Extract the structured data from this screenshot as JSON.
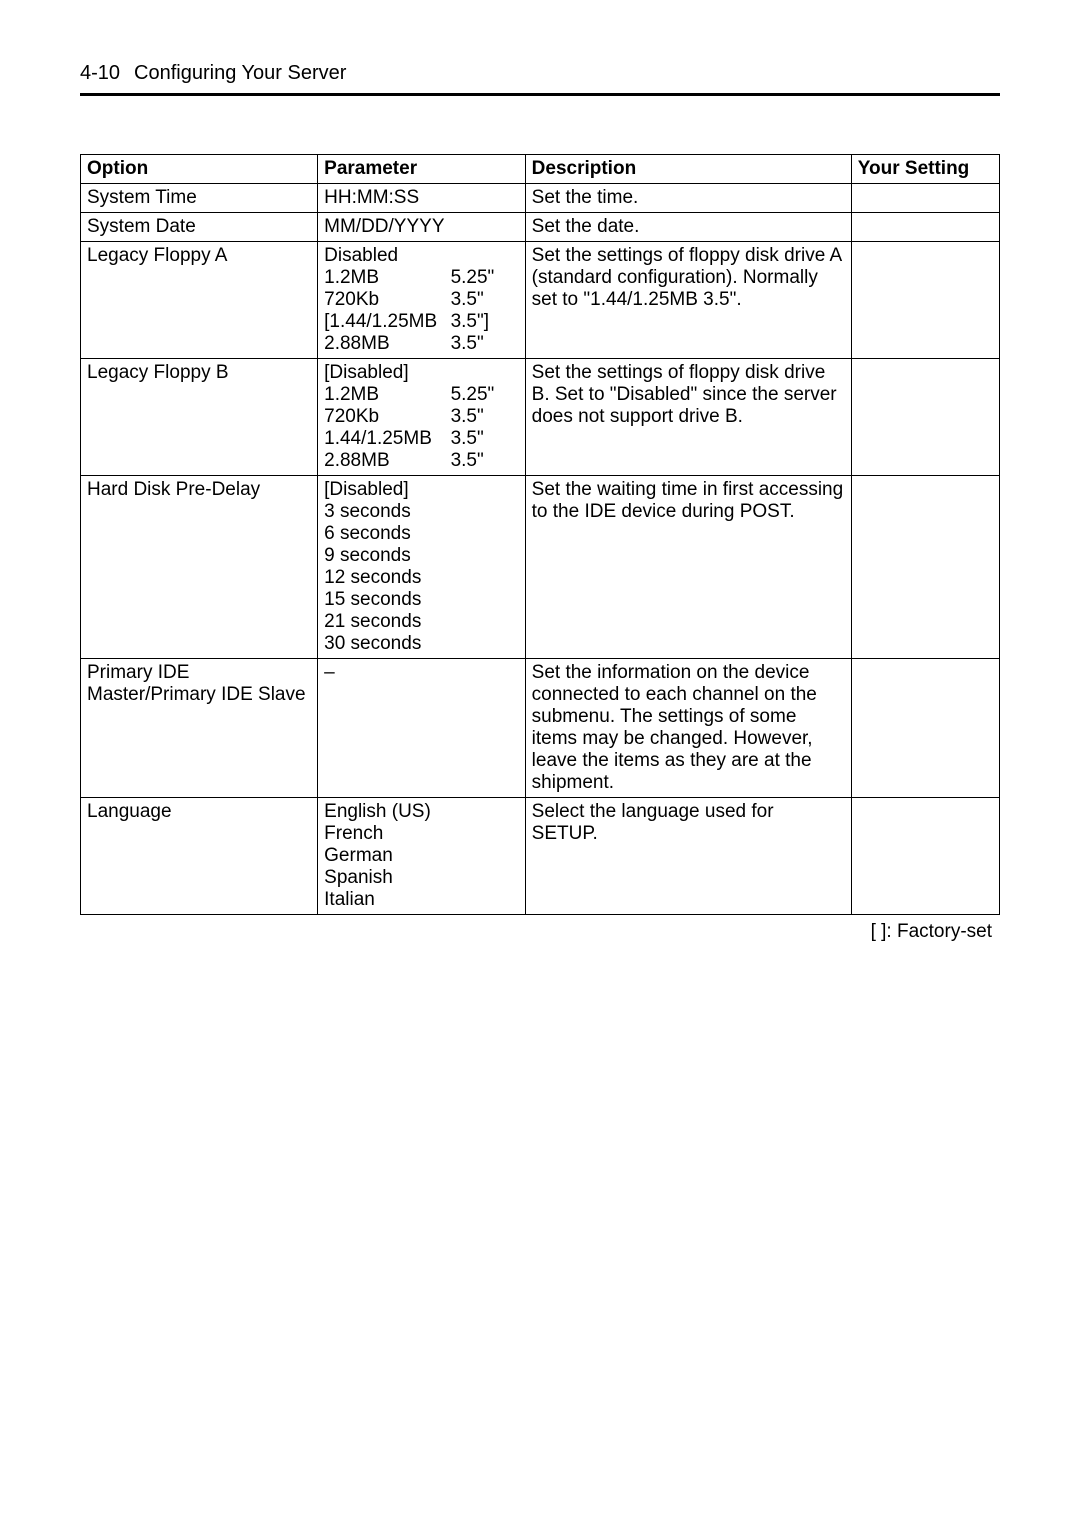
{
  "header": {
    "page_number": "4-10",
    "title": "Configuring Your Server"
  },
  "table": {
    "columns": [
      "Option",
      "Parameter",
      "Description",
      "Your Setting"
    ],
    "rows": [
      {
        "option": "System Time",
        "parameter_lines": [
          {
            "a": "HH:MM:SS",
            "b": ""
          }
        ],
        "description": "Set the time.",
        "setting": ""
      },
      {
        "option": "System Date",
        "parameter_lines": [
          {
            "a": "MM/DD/YYYY",
            "b": ""
          }
        ],
        "description": "Set the date.",
        "setting": ""
      },
      {
        "option": "Legacy Floppy A",
        "parameter_lines": [
          {
            "a": "Disabled",
            "b": ""
          },
          {
            "a": "1.2MB",
            "b": "5.25\""
          },
          {
            "a": "720Kb",
            "b": "3.5\""
          },
          {
            "a": "[1.44/1.25MB",
            "b": "3.5\"]"
          },
          {
            "a": "2.88MB",
            "b": "3.5\""
          }
        ],
        "description": "Set the settings of floppy disk drive A (standard configuration). Normally set to \"1.44/1.25MB 3.5\".",
        "setting": ""
      },
      {
        "option": "Legacy Floppy B",
        "parameter_lines": [
          {
            "a": "[Disabled]",
            "b": ""
          },
          {
            "a": "1.2MB",
            "b": "5.25\""
          },
          {
            "a": "720Kb",
            "b": "3.5\""
          },
          {
            "a": "1.44/1.25MB",
            "b": "3.5\""
          },
          {
            "a": "2.88MB",
            "b": "3.5\""
          }
        ],
        "description": "Set the settings of floppy disk drive B.\nSet to \"Disabled\" since the server does not support drive B.",
        "setting": ""
      },
      {
        "option": "Hard Disk Pre-Delay",
        "parameter_lines": [
          {
            "a": "[Disabled]",
            "b": ""
          },
          {
            "a": "3 seconds",
            "b": ""
          },
          {
            "a": "6 seconds",
            "b": ""
          },
          {
            "a": "9 seconds",
            "b": ""
          },
          {
            "a": "12 seconds",
            "b": ""
          },
          {
            "a": "15 seconds",
            "b": ""
          },
          {
            "a": "21 seconds",
            "b": ""
          },
          {
            "a": "30 seconds",
            "b": ""
          }
        ],
        "description": "Set the waiting time in first accessing to the IDE device during POST.",
        "setting": ""
      },
      {
        "option": "Primary IDE Master/Primary IDE Slave",
        "parameter_lines": [
          {
            "a": "–",
            "b": ""
          }
        ],
        "description": "Set the information on the device connected to each channel on the submenu.    The settings of some items may be changed. However, leave the items as they are at the shipment.",
        "setting": ""
      },
      {
        "option": "Language",
        "parameter_lines": [
          {
            "a": "English (US)",
            "b": ""
          },
          {
            "a": "French",
            "b": ""
          },
          {
            "a": "German",
            "b": ""
          },
          {
            "a": "Spanish",
            "b": ""
          },
          {
            "a": "Italian",
            "b": ""
          }
        ],
        "description": "Select the language used for SETUP.",
        "setting": ""
      }
    ]
  },
  "footnote": "[     ]: Factory-set"
}
